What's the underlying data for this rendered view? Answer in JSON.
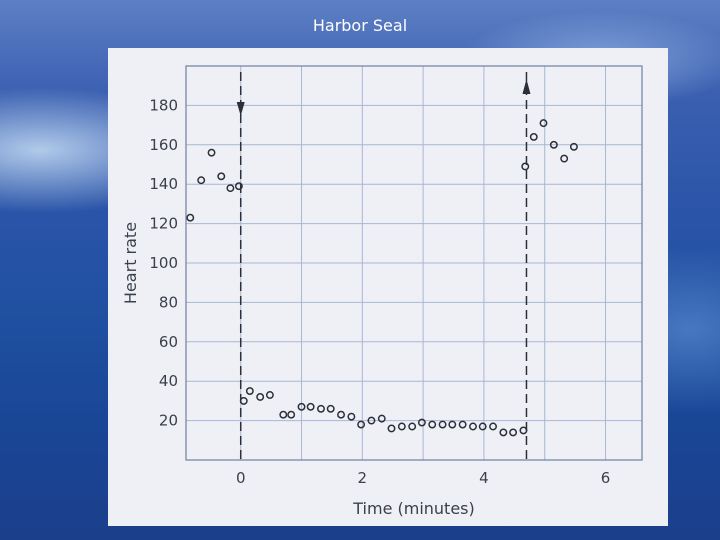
{
  "slide": {
    "title": "Harbor Seal"
  },
  "chart_data": {
    "type": "scatter",
    "title": "",
    "xlabel": "Time (minutes)",
    "ylabel": "Heart rate",
    "xlim": [
      -0.9,
      6.6
    ],
    "ylim": [
      0,
      200
    ],
    "x_ticks": [
      0,
      2,
      4,
      6
    ],
    "y_ticks": [
      20,
      40,
      60,
      80,
      100,
      120,
      140,
      160,
      180
    ],
    "grid": true,
    "series": [
      {
        "points": [
          [
            -0.83,
            123
          ],
          [
            -0.65,
            142
          ],
          [
            -0.48,
            156
          ],
          [
            -0.32,
            144
          ],
          [
            -0.17,
            138
          ],
          [
            -0.03,
            139
          ],
          [
            0.05,
            30
          ],
          [
            0.15,
            35
          ],
          [
            0.32,
            32
          ],
          [
            0.48,
            33
          ],
          [
            0.7,
            23
          ],
          [
            0.83,
            23
          ],
          [
            1.0,
            27
          ],
          [
            1.15,
            27
          ],
          [
            1.32,
            26
          ],
          [
            1.48,
            26
          ],
          [
            1.65,
            23
          ],
          [
            1.82,
            22
          ],
          [
            1.98,
            18
          ],
          [
            2.15,
            20
          ],
          [
            2.32,
            21
          ],
          [
            2.48,
            16
          ],
          [
            2.65,
            17
          ],
          [
            2.82,
            17
          ],
          [
            2.98,
            19
          ],
          [
            3.15,
            18
          ],
          [
            3.32,
            18
          ],
          [
            3.48,
            18
          ],
          [
            3.65,
            18
          ],
          [
            3.82,
            17
          ],
          [
            3.98,
            17
          ],
          [
            4.15,
            17
          ],
          [
            4.32,
            14
          ],
          [
            4.48,
            14
          ],
          [
            4.65,
            15
          ],
          [
            4.68,
            149
          ],
          [
            4.82,
            164
          ],
          [
            4.98,
            171
          ],
          [
            5.15,
            160
          ],
          [
            5.32,
            153
          ],
          [
            5.48,
            159
          ]
        ]
      }
    ],
    "event_markers": [
      {
        "x": 0.0,
        "direction": "down"
      },
      {
        "x": 4.7,
        "direction": "up"
      }
    ]
  }
}
